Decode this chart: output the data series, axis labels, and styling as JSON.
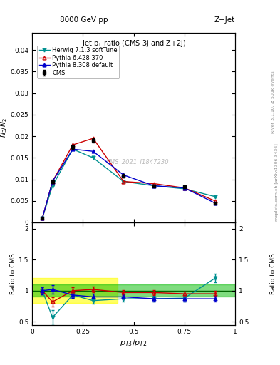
{
  "title_top": "8000 GeV pp",
  "title_right": "Z+Jet",
  "plot_title": "Jet p_{T} ratio (CMS 3j and Z+2j)",
  "xlabel": "p_{T3}/p_{T2}",
  "ylabel_main": "N_{3}/N_{2}",
  "ylabel_ratio": "Ratio to CMS",
  "watermark": "CMS_2021_I1847230",
  "right_label1": "mcplots.cern.ch [arXiv:1306.3436]",
  "right_label2": "Rivet 3.1.10, ≥ 500k events",
  "x_data": [
    0.05,
    0.1,
    0.2,
    0.3,
    0.45,
    0.6,
    0.75,
    0.9
  ],
  "cms_y": [
    0.001,
    0.0095,
    0.0175,
    0.019,
    0.0108,
    0.0085,
    0.0082,
    0.0045
  ],
  "cms_yerr": [
    0.0002,
    0.0004,
    0.0005,
    0.0005,
    0.0004,
    0.0003,
    0.0003,
    0.0002
  ],
  "herwig_y": [
    0.001,
    0.0085,
    0.017,
    0.015,
    0.0095,
    0.0085,
    0.0078,
    0.006
  ],
  "pythia6_y": [
    0.001,
    0.0095,
    0.018,
    0.0195,
    0.0095,
    0.009,
    0.008,
    0.005
  ],
  "pythia8_y": [
    0.001,
    0.0095,
    0.017,
    0.0165,
    0.011,
    0.0085,
    0.008,
    0.0045
  ],
  "herwig_ratio": [
    1.0,
    0.57,
    0.93,
    0.84,
    0.87,
    0.87,
    0.88,
    1.2
  ],
  "pythia6_ratio": [
    1.0,
    0.82,
    1.0,
    1.02,
    0.97,
    0.97,
    0.95,
    0.95
  ],
  "pythia8_ratio": [
    1.0,
    1.02,
    0.93,
    0.9,
    0.9,
    0.87,
    0.87,
    0.87
  ],
  "herwig_ratio_err": [
    0.06,
    0.12,
    0.05,
    0.05,
    0.05,
    0.05,
    0.05,
    0.07
  ],
  "pythia6_ratio_err": [
    0.06,
    0.07,
    0.05,
    0.05,
    0.04,
    0.04,
    0.04,
    0.05
  ],
  "pythia8_ratio_err": [
    0.06,
    0.07,
    0.05,
    0.05,
    0.04,
    0.04,
    0.04,
    0.05
  ],
  "cms_color": "#000000",
  "herwig_color": "#009090",
  "pythia6_color": "#cc0000",
  "pythia8_color": "#0000cc",
  "band_yellow": "#ffff00",
  "band_green": "#00bb00",
  "ylim_main": [
    0.0,
    0.044
  ],
  "ylim_ratio": [
    0.45,
    2.1
  ],
  "xlim": [
    0.0,
    1.0
  ],
  "yticks_main": [
    0.0,
    0.005,
    0.01,
    0.015,
    0.02,
    0.025,
    0.03,
    0.035,
    0.04
  ],
  "yticks_ratio": [
    0.5,
    1.0,
    1.5,
    2.0
  ]
}
